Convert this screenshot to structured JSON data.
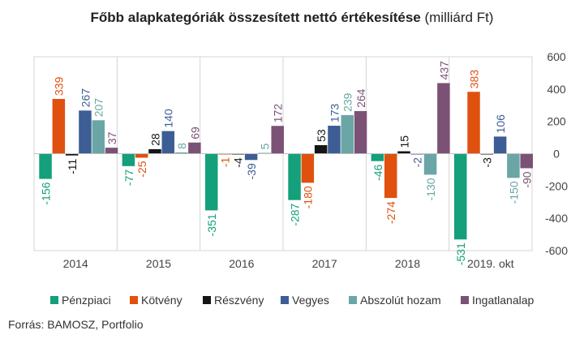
{
  "title_bold": "Főbb alapkategóriák összesített nettó értékesítése",
  "title_normal": "(milliárd Ft)",
  "source": "Forrás: BAMOSZ, Portfolio",
  "chart_data": {
    "type": "bar",
    "categories": [
      "2014",
      "2015",
      "2016",
      "2017",
      "2018",
      "2019. okt"
    ],
    "series": [
      {
        "name": "Pénzpiaci",
        "color": "#13a07a",
        "values": [
          -156,
          -77,
          -351,
          -287,
          -46,
          -531
        ]
      },
      {
        "name": "Kötvény",
        "color": "#e0510f",
        "values": [
          339,
          -25,
          -1,
          -180,
          -274,
          383
        ]
      },
      {
        "name": "Részvény",
        "color": "#151515",
        "values": [
          -11,
          28,
          -4,
          53,
          15,
          -3
        ]
      },
      {
        "name": "Vegyes",
        "color": "#3c5e94",
        "values": [
          267,
          140,
          -39,
          173,
          -2,
          106
        ]
      },
      {
        "name": "Abszolút hozam",
        "color": "#6aa6a6",
        "values": [
          207,
          8,
          5,
          239,
          -130,
          -150
        ]
      },
      {
        "name": "Ingatlanalap",
        "color": "#7b5275",
        "values": [
          37,
          69,
          172,
          264,
          437,
          -90
        ]
      }
    ],
    "ylim": [
      -600,
      600
    ],
    "yticks": [
      600,
      400,
      200,
      0,
      -200,
      -400,
      -600
    ],
    "legend": "bottom",
    "grid": false
  }
}
